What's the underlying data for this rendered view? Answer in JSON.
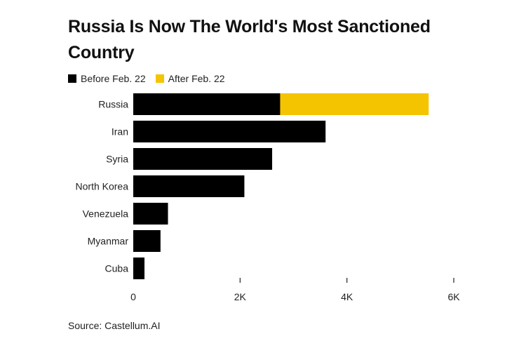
{
  "title": "Russia Is Now The World's Most Sanctioned Country",
  "source": "Source: Castellum.AI",
  "legend": [
    {
      "label": "Before Feb. 22",
      "color": "#000000"
    },
    {
      "label": "After Feb. 22",
      "color": "#F5C400"
    }
  ],
  "chart_data": {
    "type": "bar",
    "orientation": "horizontal",
    "stacked": true,
    "title": "Russia Is Now The World's Most Sanctioned Country",
    "categories": [
      "Russia",
      "Iran",
      "Syria",
      "North Korea",
      "Venezuela",
      "Myanmar",
      "Cuba"
    ],
    "series": [
      {
        "name": "Before Feb. 22",
        "color": "#000000",
        "values": [
          2750,
          3600,
          2600,
          2080,
          650,
          510,
          210
        ]
      },
      {
        "name": "After Feb. 22",
        "color": "#F5C400",
        "values": [
          2780,
          0,
          0,
          0,
          0,
          0,
          0
        ]
      }
    ],
    "xlim": [
      0,
      6000
    ],
    "xticks": [
      0,
      2000,
      4000,
      6000
    ],
    "xtick_labels": [
      "0",
      "2K",
      "4K",
      "6K"
    ],
    "xlabel": "",
    "ylabel": "",
    "grid": false,
    "legend_position": "top-left"
  }
}
